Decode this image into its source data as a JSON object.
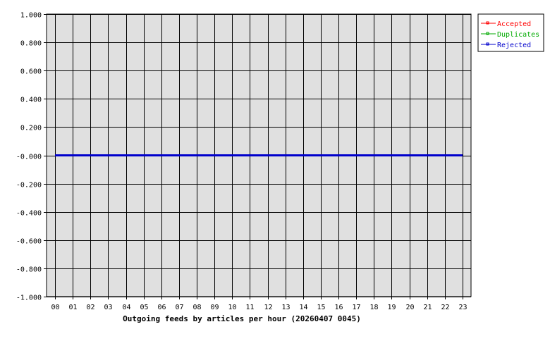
{
  "chart_data": {
    "type": "line",
    "title": "",
    "xlabel": "Outgoing feeds by articles per hour (20260407 0045)",
    "ylabel": "",
    "x": [
      "00",
      "01",
      "02",
      "03",
      "04",
      "05",
      "06",
      "07",
      "08",
      "09",
      "10",
      "11",
      "12",
      "13",
      "14",
      "15",
      "16",
      "17",
      "18",
      "19",
      "20",
      "21",
      "22",
      "23"
    ],
    "ylim": [
      -1,
      1
    ],
    "yticks": [
      "1.000",
      "0.800",
      "0.600",
      "0.400",
      "0.200",
      "-0.000",
      "-0.200",
      "-0.400",
      "-0.600",
      "-0.800",
      "-1.000"
    ],
    "grid": true,
    "legend": "top-right",
    "background": "#e0e0e0",
    "series": [
      {
        "name": "Accepted",
        "color": "#ff0000",
        "values": [
          0,
          0,
          0,
          0,
          0,
          0,
          0,
          0,
          0,
          0,
          0,
          0,
          0,
          0,
          0,
          0,
          0,
          0,
          0,
          0,
          0,
          0,
          0,
          0
        ]
      },
      {
        "name": "Duplicates",
        "color": "#00aa00",
        "values": [
          0,
          0,
          0,
          0,
          0,
          0,
          0,
          0,
          0,
          0,
          0,
          0,
          0,
          0,
          0,
          0,
          0,
          0,
          0,
          0,
          0,
          0,
          0,
          0
        ]
      },
      {
        "name": "Rejected",
        "color": "#0000cc",
        "values": [
          0,
          0,
          0,
          0,
          0,
          0,
          0,
          0,
          0,
          0,
          0,
          0,
          0,
          0,
          0,
          0,
          0,
          0,
          0,
          0,
          0,
          0,
          0,
          0
        ]
      }
    ]
  }
}
